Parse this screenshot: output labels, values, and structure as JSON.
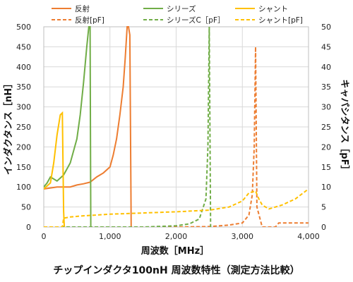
{
  "chart_data": {
    "type": "line",
    "title": "チップインダクタ100nH 周波数特性（測定方法比較）",
    "xlabel": "周波数［MHz］",
    "ylabel_left": "インダクタンス［nH］",
    "ylabel_right": "キャパシタンス［pF］",
    "xlim": [
      0,
      4000
    ],
    "ylim_left": [
      0,
      500
    ],
    "ylim_right": [
      0,
      50
    ],
    "x_ticks": [
      "0",
      "1,000",
      "2,000",
      "3,000",
      "4,000"
    ],
    "y_left_ticks": [
      "0",
      "50",
      "100",
      "150",
      "200",
      "250",
      "300",
      "350",
      "400",
      "450",
      "500"
    ],
    "y_right_ticks": [
      "0",
      "5",
      "10",
      "15",
      "20",
      "25",
      "30",
      "35",
      "40",
      "45",
      "50"
    ],
    "grid": true,
    "legend_position": "top",
    "series": [
      {
        "name": "反射",
        "axis": "left",
        "style": "solid",
        "color": "#ED7D31",
        "x": [
          0,
          200,
          400,
          500,
          600,
          700,
          800,
          900,
          1000,
          1050,
          1100,
          1150,
          1200,
          1230,
          1260,
          1280,
          1300,
          1320
        ],
        "y": [
          95,
          100,
          100,
          105,
          108,
          112,
          125,
          135,
          150,
          180,
          220,
          280,
          350,
          420,
          500,
          500,
          480,
          0
        ]
      },
      {
        "name": "シリーズ",
        "axis": "left",
        "style": "solid",
        "color": "#70AD47",
        "x": [
          0,
          50,
          100,
          200,
          300,
          400,
          500,
          550,
          600,
          650,
          680,
          700,
          710,
          720
        ],
        "y": [
          100,
          110,
          125,
          115,
          130,
          160,
          220,
          280,
          360,
          450,
          500,
          500,
          0,
          0
        ]
      },
      {
        "name": "シャント",
        "axis": "left",
        "style": "solid",
        "color": "#FFC000",
        "x": [
          0,
          100,
          150,
          200,
          250,
          280,
          300,
          310
        ],
        "y": [
          95,
          110,
          160,
          230,
          280,
          285,
          40,
          0
        ]
      },
      {
        "name": "反射[pF]",
        "axis": "right",
        "style": "dashed",
        "color": "#ED7D31",
        "x": [
          0,
          500,
          1000,
          1500,
          2000,
          2500,
          2800,
          3000,
          3100,
          3150,
          3180,
          3200,
          3220,
          3300,
          3500,
          3550,
          3700,
          4000
        ],
        "y": [
          0,
          0,
          0,
          0,
          0,
          0.1,
          0.5,
          1,
          3,
          8,
          20,
          45,
          5,
          0,
          0,
          1,
          1,
          1
        ]
      },
      {
        "name": "シリーズC［pF］",
        "axis": "right",
        "style": "dashed",
        "color": "#70AD47",
        "x": [
          0,
          500,
          1000,
          1500,
          2000,
          2200,
          2350,
          2450,
          2480,
          2500,
          2520
        ],
        "y": [
          0,
          0,
          0,
          0,
          0.3,
          0.8,
          2,
          7,
          20,
          50,
          0
        ]
      },
      {
        "name": "シャント[pF]",
        "axis": "right",
        "style": "dashed",
        "color": "#FFC000",
        "x": [
          0,
          280,
          300,
          400,
          600,
          800,
          1000,
          1500,
          2000,
          2500,
          2800,
          3000,
          3100,
          3200,
          3250,
          3300,
          3400,
          3600,
          3800,
          4000
        ],
        "y": [
          0,
          0,
          2.2,
          2.5,
          2.8,
          3,
          3.2,
          3.5,
          3.8,
          4.2,
          5,
          6.5,
          8.5,
          9,
          7,
          5.5,
          4.5,
          5.5,
          7,
          9.5
        ]
      }
    ]
  }
}
